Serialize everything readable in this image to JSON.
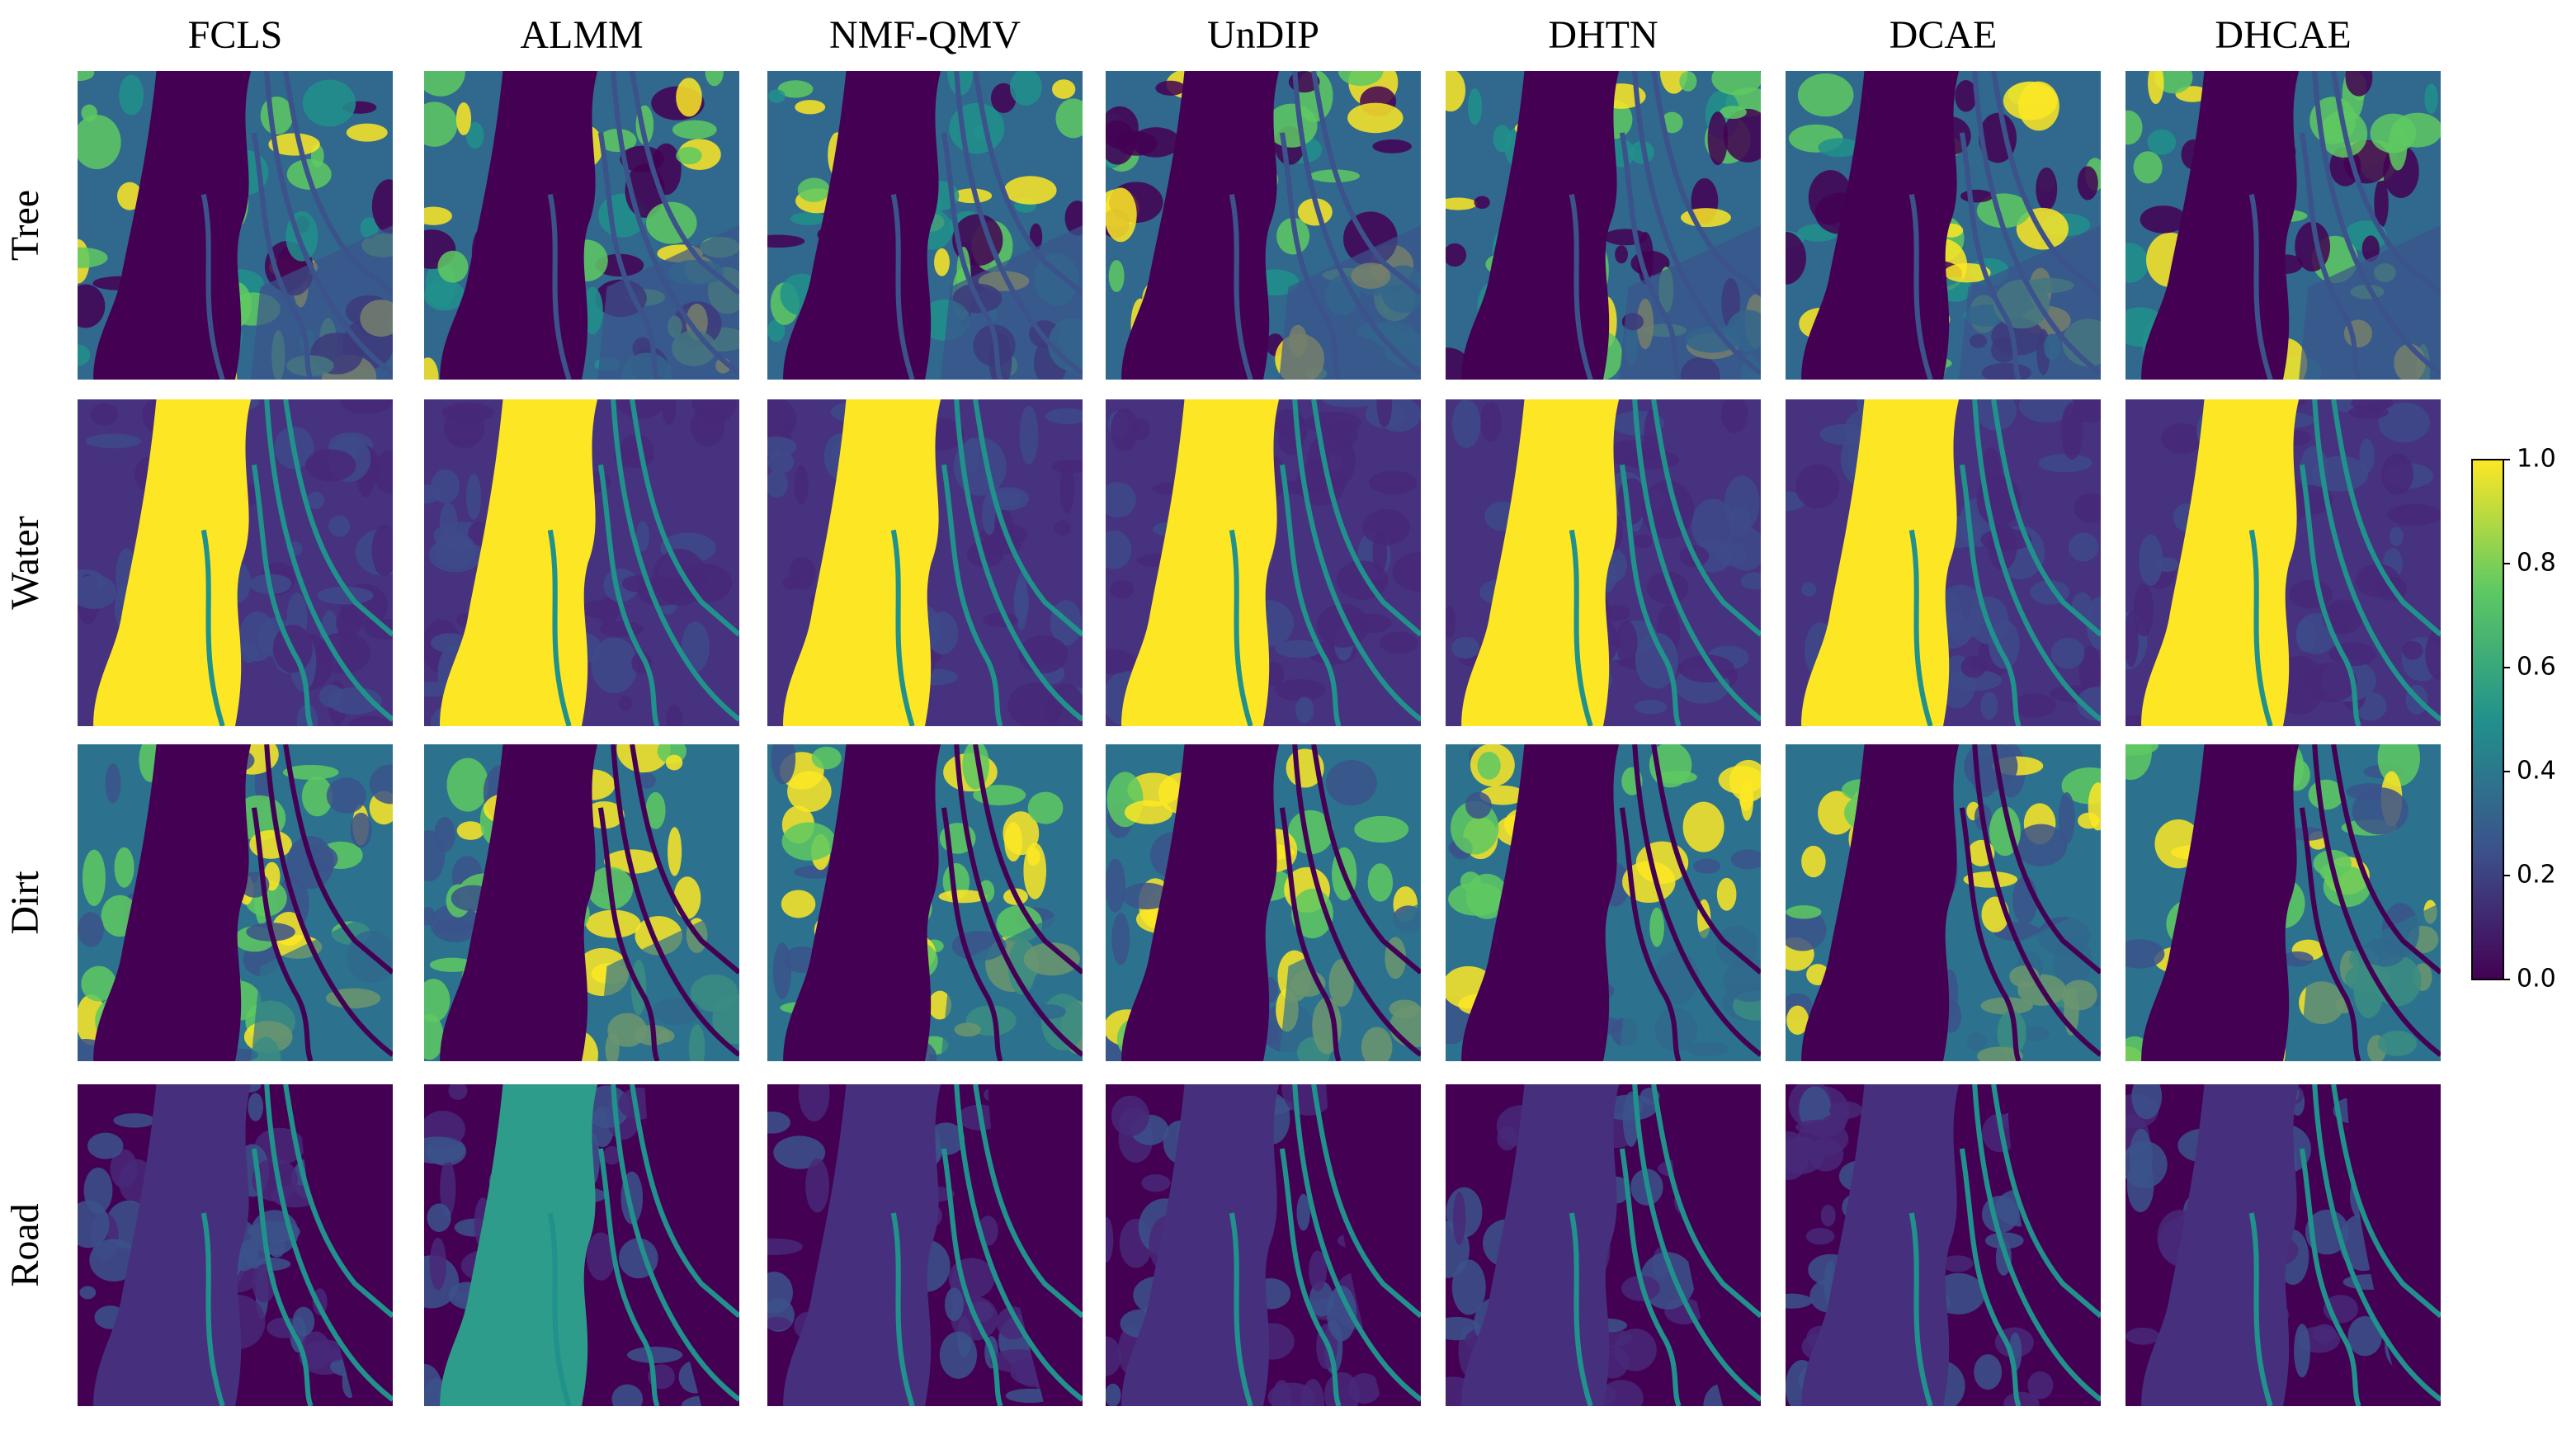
{
  "columns": [
    "FCLS",
    "ALMM",
    "NMF-QMV",
    "UnDIP",
    "DHTN",
    "DCAE",
    "DHCAE"
  ],
  "rows": [
    "Tree",
    "Water",
    "Dirt",
    "Road"
  ],
  "colorbar": {
    "range": [
      0,
      1
    ],
    "ticks": [
      {
        "value": 0,
        "label": "0.0"
      },
      0.2,
      0.4,
      0.6,
      0.8,
      {
        "value": 1,
        "label": "1.0"
      }
    ]
  }
}
